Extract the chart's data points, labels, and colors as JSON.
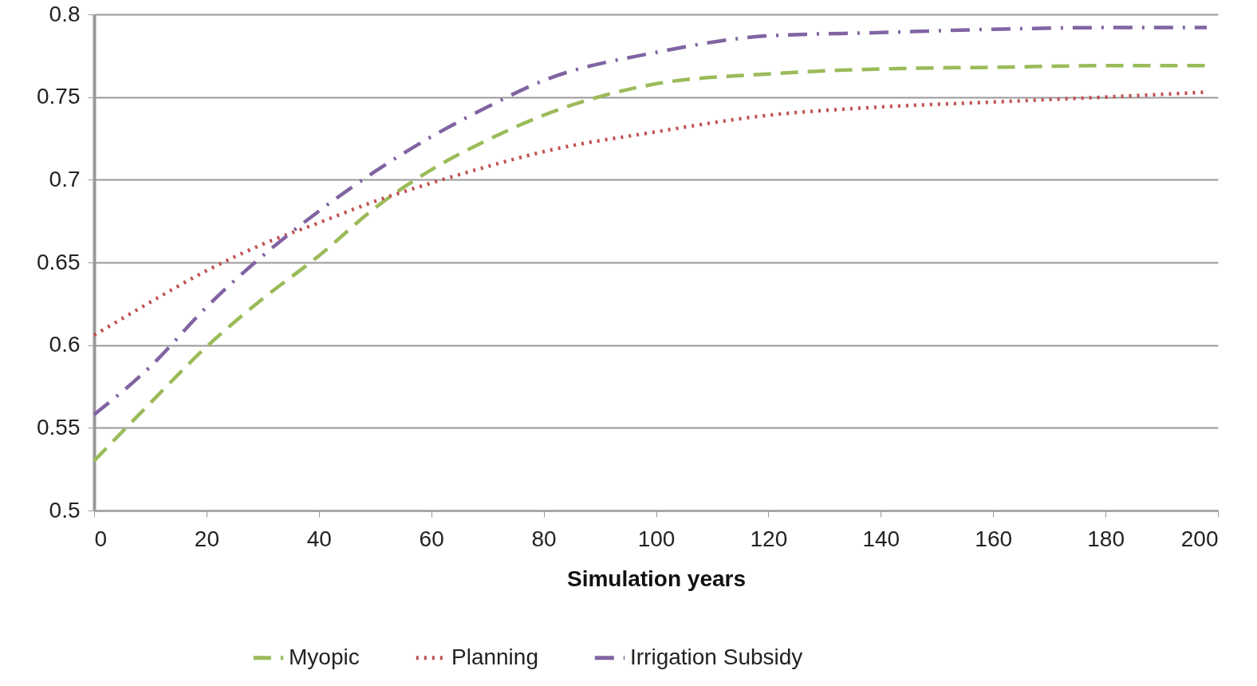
{
  "chart_data": {
    "type": "line",
    "xlabel": "Simulation years",
    "x": [
      0,
      10,
      20,
      30,
      40,
      50,
      60,
      70,
      80,
      100,
      120,
      140,
      160,
      180,
      198
    ],
    "series": [
      {
        "name": "Myopic",
        "color": "#9bbb59",
        "line_style": "dashed",
        "values": [
          0.53,
          0.565,
          0.599,
          0.628,
          0.654,
          0.683,
          0.706,
          0.724,
          0.739,
          0.758,
          0.764,
          0.767,
          0.768,
          0.769,
          0.769
        ]
      },
      {
        "name": "Planning",
        "color": "#c0504d",
        "line_style": "dotted",
        "values": [
          0.606,
          0.626,
          0.645,
          0.661,
          0.674,
          0.687,
          0.698,
          0.708,
          0.717,
          0.729,
          0.739,
          0.744,
          0.747,
          0.75,
          0.753
        ]
      },
      {
        "name": "Irrigation Subsidy",
        "color": "#8064a2",
        "line_style": "dashdot",
        "values": [
          0.558,
          0.587,
          0.623,
          0.654,
          0.681,
          0.705,
          0.726,
          0.744,
          0.76,
          0.777,
          0.787,
          0.789,
          0.791,
          0.792,
          0.792
        ]
      }
    ],
    "xlim": [
      0,
      200
    ],
    "xticks": [
      0,
      20,
      40,
      60,
      80,
      100,
      120,
      140,
      160,
      180,
      200
    ],
    "ylim": [
      0.5,
      0.8
    ],
    "yticks": [
      0.5,
      0.55,
      0.6,
      0.65,
      0.7,
      0.75,
      0.8
    ],
    "grid": "y",
    "legend": "bottom"
  }
}
